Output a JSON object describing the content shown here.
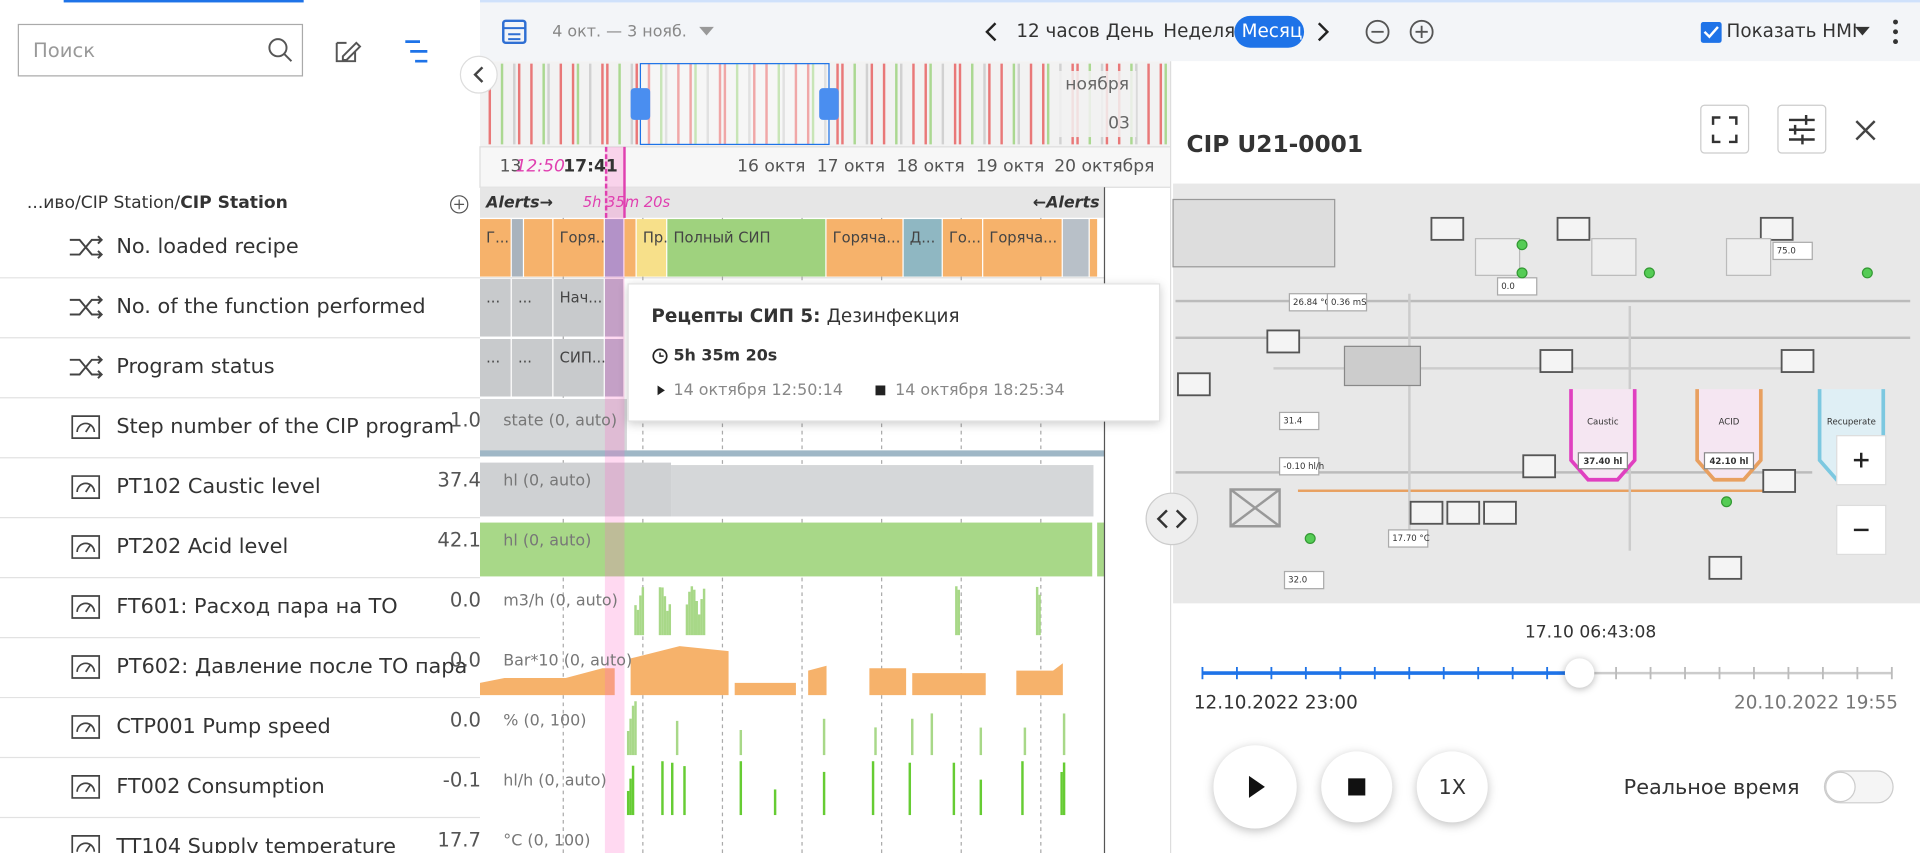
{
  "search": {
    "placeholder": "Поиск"
  },
  "breadcrumb": {
    "path": "...иво/CIP Station/",
    "current": "CIP Station"
  },
  "signals": [
    {
      "name": "No. loaded recipe"
    },
    {
      "name": "No. of the function performed"
    },
    {
      "name": "Program status"
    },
    {
      "name": "Step number of the CIP program",
      "value": "1.00",
      "unit": "state (0, auto)"
    },
    {
      "name": "PT102 Caustic level",
      "value": "37.40",
      "unit": "hl (0, auto)"
    },
    {
      "name": "PT202 Acid level",
      "value": "42.10",
      "unit": "hl (0, auto)"
    },
    {
      "name": "FT601: Расход пара на ТО",
      "value": "0.00",
      "unit": "m3/h (0, auto)"
    },
    {
      "name": "PT602: Давление после ТО пара",
      "value": "0.00",
      "unit": "Bar*10 (0, auto)"
    },
    {
      "name": "CTP001 Pump speed",
      "value": "0.00",
      "unit": "% (0, 100)"
    },
    {
      "name": "FT002 Consumption",
      "value": "-0.10",
      "unit": "hl/h (0, auto)"
    },
    {
      "name": "TT104 Supply temperature",
      "value": "17.70",
      "unit": "°C (0, 100)"
    }
  ],
  "toolbar": {
    "date_range": "4 окт. — 3 нояб.",
    "scales": [
      "12 часов",
      "День",
      "Неделя",
      "Месяц"
    ],
    "show_hmi": "Показать HMI"
  },
  "timeline": {
    "overview": [
      "ноября",
      "03"
    ],
    "days": [
      "13",
      "16 октя",
      "17 октя",
      "18 октя",
      "19 октя",
      "20 октября"
    ],
    "cursor": "17:41",
    "marker": "12:50",
    "alerts_left": "Alerts→",
    "alerts_right": "←Alerts",
    "selection": "5h 35m 20s"
  },
  "rows": {
    "recipe": [
      "Г...",
      "Горя...",
      "Пр...",
      "Полный СИП",
      "Горяча...",
      "Д...",
      "Го...",
      "Горяча..."
    ],
    "function": [
      "...",
      "...",
      "Нач..."
    ],
    "status": [
      "...",
      "...",
      "СИП..."
    ]
  },
  "tooltip": {
    "title": "Рецепты СИП 5:",
    "value": "Дезинфекция",
    "duration": "5h 35m 20s",
    "start": "14 октября 12:50:14",
    "end": "14 октября 18:25:34"
  },
  "hmi": {
    "title": "CIP U21-0001",
    "tanks": [
      "Caustic",
      "ACID",
      "Recuperate"
    ],
    "levels": [
      "37.40 hl",
      "42.10 hl"
    ],
    "readings": [
      "26.84 °C",
      "0.36 mS",
      "-0.10 hl/h",
      "17.70 °C",
      "31.4",
      "32.0",
      "75.0",
      "0.0"
    ]
  },
  "player": {
    "current": "17.10 06:43:08",
    "start": "12.10.2022 23:00",
    "end": "20.10.2022 19:55",
    "speed": "1X",
    "realtime": "Реальное время"
  }
}
